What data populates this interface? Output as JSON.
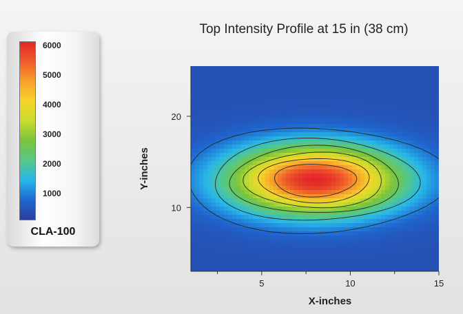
{
  "legend": {
    "ticks": [
      "6000",
      "5000",
      "4000",
      "3000",
      "2000",
      "1000"
    ],
    "name": "CLA-100",
    "colors": [
      "#2a3f9e",
      "#1f66cf",
      "#27b6ea",
      "#55c88a",
      "#7ac43b",
      "#c8db2f",
      "#f6d529",
      "#f7a12d",
      "#ee5c2a",
      "#e3262a"
    ]
  },
  "chart_data": {
    "type": "heatmap",
    "title": "Top Intensity Profile at 15 in (38 cm)",
    "xlabel": "X-inches",
    "ylabel": "Y-inches",
    "xlim": [
      1,
      15
    ],
    "ylim": [
      3,
      25.5
    ],
    "x_ticks": [
      "5",
      "10",
      "15"
    ],
    "y_ticks": [
      "20",
      "10"
    ],
    "x_tick_values": [
      5,
      10,
      15
    ],
    "y_tick_values": [
      20,
      10
    ],
    "x_minor_ticks": [
      2.5,
      7.5,
      12.5
    ],
    "color_scale": {
      "min": 0,
      "max": 6000
    },
    "background_intensity": 300,
    "peak": {
      "x": 8,
      "y": 13,
      "intensity": 6000
    },
    "contour_levels": [
      800,
      1600,
      2400,
      3200,
      4000,
      4800
    ]
  }
}
